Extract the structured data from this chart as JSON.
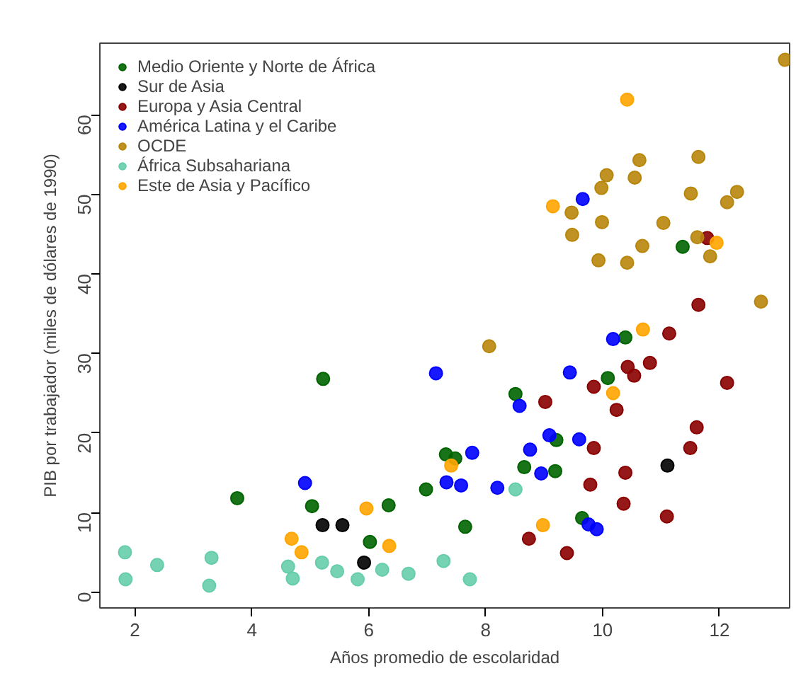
{
  "chart_data": {
    "type": "scatter",
    "xlabel": "Años promedio de escolaridad",
    "ylabel": "PIB por trabajador (miles de dólares de 1990)",
    "xlim": [
      1.4,
      13.2
    ],
    "ylim": [
      -2,
      69
    ],
    "xticks": [
      2,
      4,
      6,
      8,
      10,
      12
    ],
    "yticks": [
      0,
      10,
      20,
      30,
      40,
      50,
      60
    ],
    "marker": "circle",
    "legend": "top left",
    "grid": false,
    "series": [
      {
        "name": "Medio Oriente y Norte de África",
        "color": "#006400",
        "x": [
          10.39,
          10.09,
          8.51,
          9.21,
          7.32,
          7.48,
          8.66,
          9.19,
          6.98,
          7.65,
          9.65,
          5.22,
          3.75,
          5.03,
          6.34,
          6.02,
          11.37
        ],
        "values": [
          32.0,
          26.9,
          24.9,
          19.1,
          17.3,
          16.8,
          15.7,
          15.2,
          12.9,
          8.2,
          9.3,
          26.8,
          11.8,
          10.8,
          10.9,
          6.3,
          43.4
        ]
      },
      {
        "name": "Sur de Asia",
        "color": "#000000",
        "x": [
          11.11,
          5.21,
          5.55,
          5.92
        ],
        "values": [
          15.9,
          8.4,
          8.4,
          3.7
        ]
      },
      {
        "name": "Europa y Asia Central",
        "color": "#8b0000",
        "x": [
          11.64,
          11.14,
          10.43,
          10.54,
          10.81,
          9.85,
          10.24,
          12.13,
          9.02,
          11.61,
          11.5,
          9.85,
          10.39,
          9.79,
          10.36,
          11.1,
          8.74,
          9.39,
          11.79
        ],
        "values": [
          36.1,
          32.5,
          28.3,
          27.2,
          28.8,
          25.8,
          22.9,
          26.3,
          23.9,
          20.7,
          18.1,
          18.1,
          15.0,
          13.5,
          11.1,
          9.5,
          6.7,
          4.9,
          44.5
        ]
      },
      {
        "name": "América Latina y el Caribe",
        "color": "#0000ff",
        "x": [
          10.18,
          7.15,
          9.44,
          8.58,
          9.09,
          9.6,
          8.76,
          7.77,
          8.95,
          7.33,
          7.58,
          8.2,
          9.76,
          9.9,
          4.91,
          9.66
        ],
        "values": [
          31.8,
          27.5,
          27.6,
          23.4,
          19.7,
          19.2,
          17.9,
          17.5,
          14.9,
          13.8,
          13.4,
          13.1,
          8.5,
          7.9,
          13.7,
          49.4
        ]
      },
      {
        "name": "OCDE",
        "color": "#b8860b",
        "x": [
          12.71,
          8.06,
          13.12,
          10.63,
          11.64,
          10.07,
          9.98,
          10.55,
          9.47,
          11.51,
          12.3,
          12.13,
          9.99,
          11.04,
          9.48,
          10.68,
          11.62,
          11.84,
          9.93,
          10.42
        ],
        "values": [
          36.5,
          30.9,
          66.9,
          54.3,
          54.7,
          52.4,
          50.8,
          52.1,
          47.7,
          50.1,
          50.3,
          49.0,
          46.5,
          46.4,
          44.9,
          43.5,
          44.6,
          42.2,
          41.7,
          41.4
        ]
      },
      {
        "name": "África Subsahariana",
        "color": "#66cdaa",
        "x": [
          1.83,
          1.84,
          2.38,
          3.31,
          3.27,
          4.62,
          4.7,
          5.2,
          5.46,
          5.81,
          6.23,
          6.68,
          7.28,
          7.73,
          8.51
        ],
        "values": [
          5.0,
          1.6,
          3.4,
          4.3,
          0.8,
          3.2,
          1.7,
          3.7,
          2.6,
          1.6,
          2.8,
          2.3,
          3.9,
          1.6,
          12.9
        ]
      },
      {
        "name": "Este de Asia y Pacífico",
        "color": "#ffa500",
        "x": [
          10.42,
          9.15,
          11.95,
          10.69,
          10.18,
          7.41,
          8.98,
          5.96,
          4.68,
          4.85,
          6.35
        ],
        "values": [
          61.9,
          48.5,
          43.9,
          33.0,
          25.0,
          15.9,
          8.4,
          10.5,
          6.7,
          5.0,
          5.8
        ]
      }
    ]
  }
}
